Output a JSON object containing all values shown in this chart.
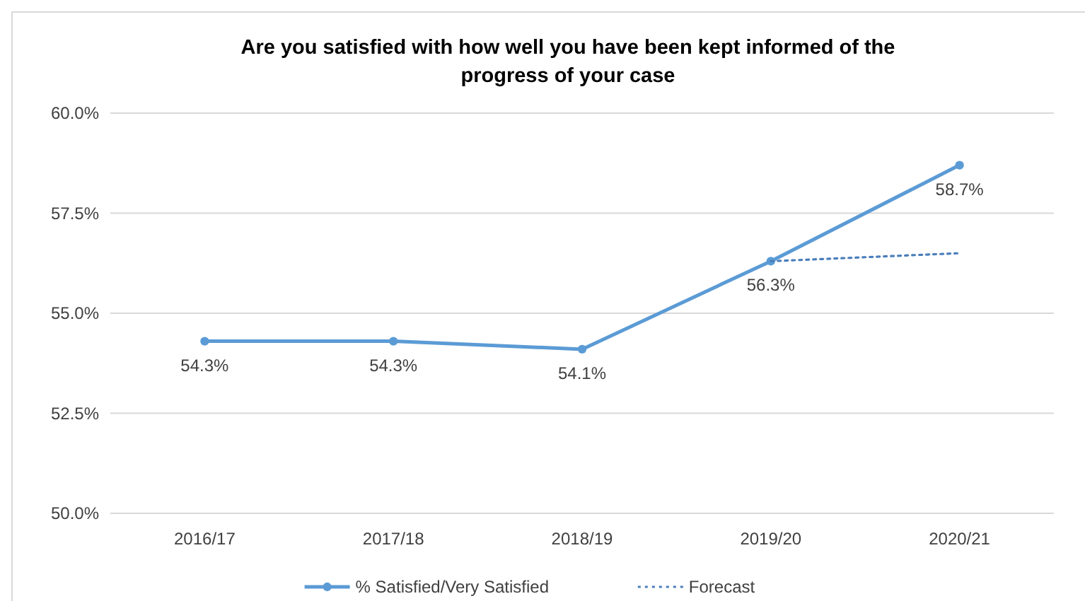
{
  "chart_data": {
    "type": "line",
    "title": "Are you satisfied with how well you have been kept informed of the progress of your case",
    "categories": [
      "2016/17",
      "2017/18",
      "2018/19",
      "2019/20",
      "2020/21"
    ],
    "series": [
      {
        "name": "% Satisfied/Very Satisfied",
        "color": "#5b9bd5",
        "values": [
          54.3,
          54.3,
          54.1,
          56.3,
          58.7
        ],
        "marker": "circle",
        "line_style": "solid",
        "value_labels": [
          "54.3%",
          "54.3%",
          "54.1%",
          "56.3%",
          "58.7%"
        ]
      },
      {
        "name": "Forecast",
        "color": "#4a7ebb",
        "values": [
          null,
          null,
          null,
          56.3,
          56.5
        ],
        "marker": "none",
        "line_style": "dotted"
      }
    ],
    "ylim": [
      50,
      60
    ],
    "yticks": [
      {
        "value": 50,
        "label": "50.0%"
      },
      {
        "value": 52.5,
        "label": "52.5%"
      },
      {
        "value": 55,
        "label": "55.0%"
      },
      {
        "value": 57.5,
        "label": "57.5%"
      },
      {
        "value": 60,
        "label": "60.0%"
      }
    ],
    "grid": "y",
    "legend": "bottom"
  }
}
